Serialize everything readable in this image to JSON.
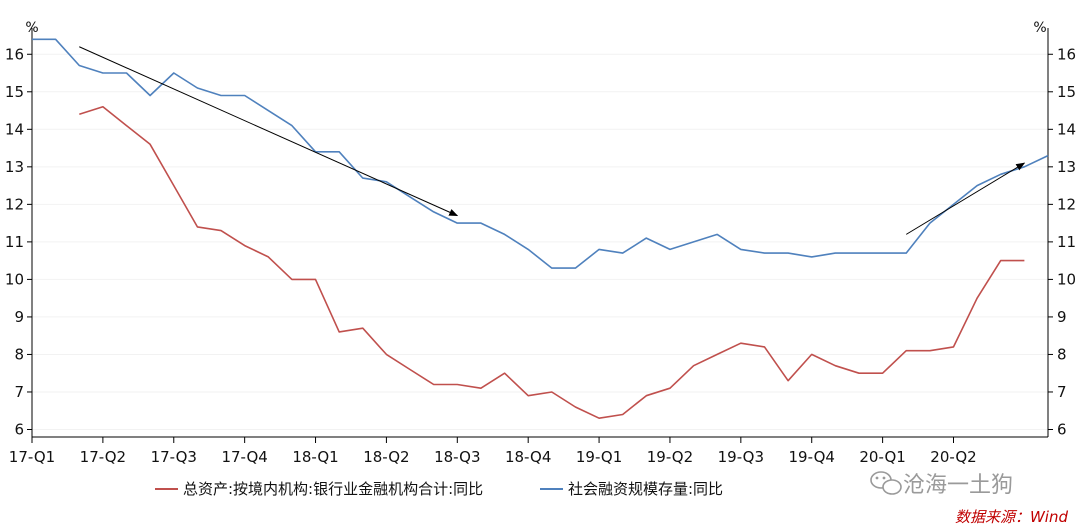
{
  "chart_data": {
    "type": "line",
    "y_unit_left": "%",
    "y_unit_right": "%",
    "ylim": [
      5.8,
      16.7
    ],
    "yticks": [
      6,
      7,
      8,
      9,
      10,
      11,
      12,
      13,
      14,
      15,
      16
    ],
    "x_tick_labels": [
      "17-Q1",
      "17-Q2",
      "17-Q3",
      "17-Q4",
      "18-Q1",
      "18-Q2",
      "18-Q3",
      "18-Q4",
      "19-Q1",
      "19-Q2",
      "19-Q3",
      "19-Q4",
      "20-Q1",
      "20-Q2"
    ],
    "x_months": [
      "2017-01",
      "2017-02",
      "2017-03",
      "2017-04",
      "2017-05",
      "2017-06",
      "2017-07",
      "2017-08",
      "2017-09",
      "2017-10",
      "2017-11",
      "2017-12",
      "2018-01",
      "2018-02",
      "2018-03",
      "2018-04",
      "2018-05",
      "2018-06",
      "2018-07",
      "2018-08",
      "2018-09",
      "2018-10",
      "2018-11",
      "2018-12",
      "2019-01",
      "2019-02",
      "2019-03",
      "2019-04",
      "2019-05",
      "2019-06",
      "2019-07",
      "2019-08",
      "2019-09",
      "2019-10",
      "2019-11",
      "2019-12",
      "2020-01",
      "2020-02",
      "2020-03",
      "2020-04",
      "2020-05",
      "2020-06",
      "2020-07",
      "2020-08"
    ],
    "series": [
      {
        "name": "总资产:按境内机构:银行业金融机构合计:同比",
        "color": "#c0504d",
        "x_start_month": "2017-03",
        "values": [
          14.4,
          14.6,
          14.1,
          13.6,
          12.5,
          11.4,
          11.3,
          10.9,
          10.6,
          10.0,
          10.0,
          8.6,
          8.7,
          8.0,
          7.6,
          7.2,
          7.2,
          7.1,
          7.5,
          6.9,
          7.0,
          6.6,
          6.3,
          6.4,
          6.9,
          7.1,
          7.7,
          8.0,
          8.3,
          8.2,
          7.3,
          8.0,
          7.7,
          7.5,
          7.5,
          8.1,
          8.1,
          8.2,
          9.5,
          10.5,
          10.5
        ]
      },
      {
        "name": "社会融资规模存量:同比",
        "color": "#4f81bd",
        "x_start_month": "2017-01",
        "values": [
          16.4,
          16.4,
          15.7,
          15.5,
          15.5,
          14.9,
          15.5,
          15.1,
          14.9,
          14.9,
          14.5,
          14.1,
          13.4,
          13.4,
          12.7,
          12.6,
          12.2,
          11.8,
          11.5,
          11.5,
          11.2,
          10.8,
          10.3,
          10.3,
          10.8,
          10.7,
          11.1,
          10.8,
          11.0,
          11.2,
          10.8,
          10.7,
          10.7,
          10.6,
          10.7,
          10.7,
          10.7,
          10.7,
          11.5,
          12.0,
          12.5,
          12.8,
          13.0,
          13.3
        ]
      }
    ],
    "annotations": [
      {
        "type": "arrow",
        "from": {
          "month": "2017-03",
          "y": 16.2
        },
        "to": {
          "month": "2018-07",
          "y": 11.7
        }
      },
      {
        "type": "arrow",
        "from": {
          "month": "2020-02",
          "y": 11.2
        },
        "to": {
          "month": "2020-07",
          "y": 13.1
        }
      }
    ],
    "legend_position": "bottom",
    "grid": true
  },
  "footer": {
    "watermark": "沧海一土狗",
    "source": "数据来源：Wind"
  },
  "colors": {
    "axis": "#000000",
    "grid": "#f2f2f2",
    "arrow": "#000000",
    "watermark": "#9a9a9a",
    "source": "#c00000"
  }
}
